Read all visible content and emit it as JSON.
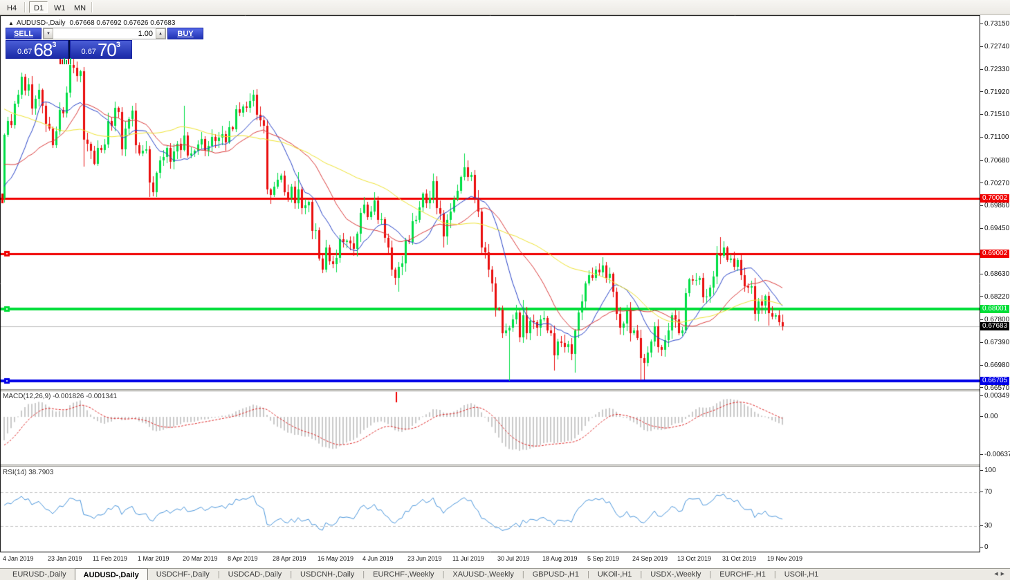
{
  "toolbar": {
    "buttons": [
      "H4",
      "D1",
      "W1",
      "MN"
    ],
    "active_index": 1
  },
  "header": {
    "collapse_icon": "▲",
    "title": "AUDUSD-,Daily",
    "ohlc": "0.67668 0.67692 0.67626 0.67683"
  },
  "trade_widget": {
    "sell_label": "SELL",
    "buy_label": "BUY",
    "volume": "1.00",
    "stepper_down": "▼",
    "stepper_up": "▲",
    "sell_price": {
      "prefix": "0.67",
      "big": "68",
      "sup": "3"
    },
    "buy_price": {
      "prefix": "0.67",
      "big": "70",
      "sup": "3"
    },
    "tick_marks": [
      {
        "color": "#E00000",
        "h": 8
      },
      {
        "color": "#E00000",
        "h": 7
      },
      {
        "color": "#00B050",
        "h": 9
      },
      {
        "color": "#00B050",
        "h": 6
      },
      {
        "color": "#E00000",
        "h": 8
      },
      {
        "color": "#00C060",
        "h": 9
      }
    ]
  },
  "price_axis": {
    "ticks": [
      "0.73150",
      "0.72740",
      "0.72330",
      "0.71920",
      "0.71510",
      "0.71100",
      "0.70680",
      "0.70270",
      "0.69860",
      "0.69450",
      "0.68630",
      "0.68220",
      "0.67800",
      "0.67390",
      "0.66980",
      "0.66570"
    ],
    "highlights": [
      {
        "text": "0.70002",
        "bg": "#F00000",
        "fg": "#FFFFFF"
      },
      {
        "text": "0.69002",
        "bg": "#F00000",
        "fg": "#FFFFFF"
      },
      {
        "text": "0.68001",
        "bg": "#00DE38",
        "fg": "#FFFFFF"
      },
      {
        "text": "0.67683",
        "bg": "#000000",
        "fg": "#FFFFFF"
      },
      {
        "text": "0.66705",
        "bg": "#0000E8",
        "fg": "#FFFFFF"
      }
    ]
  },
  "indicators": {
    "macd": {
      "label": "MACD(12,26,9) -0.001826 -0.001341",
      "fast": 12,
      "slow": 26,
      "signal": 9,
      "axis_labels": [
        "0.00349",
        "0.00",
        "-0.00637"
      ]
    },
    "rsi": {
      "label": "RSI(14) 38.7903",
      "period": 14,
      "axis_labels": [
        "100",
        "70",
        "30",
        "0"
      ],
      "levels": [
        70,
        30
      ]
    }
  },
  "tabs": {
    "items": [
      "EURUSD-,Daily",
      "AUDUSD-,Daily",
      "USDCHF-,Daily",
      "USDCAD-,Daily",
      "USDCNH-,Daily",
      "EURCHF-,Weekly",
      "XAUUSD-,Weekly",
      "GBPUSD-,H1",
      "UKOil-,H1",
      "USDX-,Weekly",
      "EURCHF-,H1",
      "USOil-,H1"
    ],
    "active_index": 1,
    "scroll_left": "◀",
    "scroll_right": "▶"
  },
  "chart_data": {
    "type": "candlestick",
    "symbol": "AUDUSD-",
    "timeframe": "Daily",
    "x_labels": [
      "4 Jan 2019",
      "23 Jan 2019",
      "11 Feb 2019",
      "1 Mar 2019",
      "20 Mar 2019",
      "8 Apr 2019",
      "28 Apr 2019",
      "16 May 2019",
      "4 Jun 2019",
      "23 Jun 2019",
      "11 Jul 2019",
      "30 Jul 2019",
      "18 Aug 2019",
      "5 Sep 2019",
      "24 Sep 2019",
      "13 Oct 2019",
      "31 Oct 2019",
      "19 Nov 2019"
    ],
    "candles_per_label": 13,
    "ylim": {
      "main": [
        0.66564,
        0.73302
      ],
      "macd": [
        -0.00788,
        0.0043
      ],
      "rsi": [
        0,
        100
      ]
    },
    "first_open": 0.7,
    "current_price": 0.67683,
    "closes": [
      0.7115,
      0.714,
      0.7133,
      0.7172,
      0.7188,
      0.722,
      0.7195,
      0.7207,
      0.7163,
      0.718,
      0.7196,
      0.7168,
      0.7135,
      0.7126,
      0.7096,
      0.7121,
      0.716,
      0.7154,
      0.7192,
      0.7242,
      0.7236,
      0.7222,
      0.723,
      0.7106,
      0.7099,
      0.7086,
      0.7063,
      0.7091,
      0.7088,
      0.7098,
      0.714,
      0.7131,
      0.7164,
      0.7157,
      0.7089,
      0.7127,
      0.7144,
      0.7159,
      0.7096,
      0.7081,
      0.7086,
      0.7089,
      0.7029,
      0.7011,
      0.7046,
      0.7069,
      0.7075,
      0.7091,
      0.7066,
      0.7085,
      0.7099,
      0.7088,
      0.7114,
      0.7078,
      0.7081,
      0.7086,
      0.7098,
      0.7108,
      0.7086,
      0.7095,
      0.7111,
      0.7104,
      0.711,
      0.7116,
      0.7102,
      0.7129,
      0.7125,
      0.7161,
      0.7155,
      0.7166,
      0.7164,
      0.7176,
      0.7188,
      0.7152,
      0.7142,
      0.7131,
      0.7016,
      0.7006,
      0.7022,
      0.7034,
      0.7041,
      0.7011,
      0.7001,
      0.7021,
      0.6991,
      0.7016,
      0.6983,
      0.6988,
      0.6994,
      0.6941,
      0.6943,
      0.6891,
      0.6871,
      0.6911,
      0.6886,
      0.6881,
      0.6893,
      0.6927,
      0.6921,
      0.6924,
      0.6919,
      0.6909,
      0.6936,
      0.6974,
      0.6989,
      0.6966,
      0.6976,
      0.6997,
      0.6961,
      0.6963,
      0.6929,
      0.6911,
      0.6871,
      0.6856,
      0.6876,
      0.6883,
      0.6924,
      0.6921,
      0.6959,
      0.6962,
      0.6984,
      0.7009,
      0.6991,
      0.7001,
      0.7031,
      0.6983,
      0.6973,
      0.6931,
      0.6961,
      0.6977,
      0.6999,
      0.7014,
      0.7039,
      0.7057,
      0.7039,
      0.7043,
      0.7001,
      0.6976,
      0.6911,
      0.6903,
      0.6871,
      0.6846,
      0.6801,
      0.6799,
      0.6756,
      0.6761,
      0.6766,
      0.6781,
      0.6794,
      0.6749,
      0.6789,
      0.6756,
      0.6779,
      0.6777,
      0.6766,
      0.6781,
      0.6784,
      0.6761,
      0.6756,
      0.6716,
      0.6741,
      0.6739,
      0.6731,
      0.6736,
      0.6719,
      0.6761,
      0.6794,
      0.6814,
      0.6846,
      0.6861,
      0.6856,
      0.6872,
      0.6866,
      0.6879,
      0.6856,
      0.6864,
      0.6831,
      0.6791,
      0.6766,
      0.6774,
      0.6799,
      0.6756,
      0.6761,
      0.6748,
      0.6712,
      0.6703,
      0.6721,
      0.6742,
      0.6769,
      0.6731,
      0.6726,
      0.6744,
      0.6761,
      0.6789,
      0.6781,
      0.6756,
      0.6761,
      0.6829,
      0.6854,
      0.6851,
      0.6853,
      0.6856,
      0.6821,
      0.6823,
      0.6839,
      0.6859,
      0.6899,
      0.6896,
      0.6911,
      0.6889,
      0.6891,
      0.6876,
      0.6889,
      0.6861,
      0.6841,
      0.6839,
      0.6841,
      0.6791,
      0.6814,
      0.6806,
      0.6824,
      0.6793,
      0.6786,
      0.6789,
      0.6776,
      0.67683
    ],
    "prehistory_closes": [
      0.73,
      0.7285,
      0.727,
      0.726,
      0.7272,
      0.7248,
      0.7232,
      0.7241,
      0.721,
      0.7196,
      0.7176,
      0.7199,
      0.7186,
      0.7205,
      0.7224,
      0.7209,
      0.7193,
      0.7178,
      0.7153,
      0.7134,
      0.7148,
      0.7168,
      0.7143,
      0.7118,
      0.7098,
      0.7078,
      0.7092,
      0.7063,
      0.7048,
      0.7072,
      0.7052,
      0.7038,
      0.7058,
      0.7042,
      0.7023,
      0.7034,
      0.7018,
      0.6998,
      0.7012,
      0.6988,
      0.6936,
      0.7003
    ],
    "wick_overrides": {
      "0": {
        "l": 0.6993
      },
      "5": {
        "h": 0.7228
      },
      "19": {
        "h": 0.7258
      },
      "20": {
        "h": 0.7255
      },
      "23": {
        "l": 0.7058
      },
      "42": {
        "l": 0.7003
      },
      "52": {
        "h": 0.7168
      },
      "72": {
        "h": 0.7196
      },
      "76": {
        "l": 0.7008
      },
      "77": {
        "l": 0.699
      },
      "85": {
        "h": 0.7048
      },
      "92": {
        "l": 0.6865
      },
      "96": {
        "l": 0.6866
      },
      "114": {
        "l": 0.6832
      },
      "124": {
        "h": 0.7045
      },
      "127": {
        "l": 0.6911
      },
      "133": {
        "h": 0.7082
      },
      "144": {
        "l": 0.6748
      },
      "146": {
        "l": 0.66705
      },
      "150": {
        "h": 0.6817
      },
      "159": {
        "l": 0.6689
      },
      "165": {
        "l": 0.6685
      },
      "184": {
        "l": 0.6671
      },
      "185": {
        "l": 0.6673
      },
      "197": {
        "h": 0.6838
      },
      "206": {
        "h": 0.6914
      },
      "207": {
        "h": 0.693
      },
      "221": {
        "l": 0.677
      }
    },
    "moving_averages": [
      {
        "period": 12,
        "color": "#2742C8"
      },
      {
        "period": 24,
        "color": "#DC3C3C"
      },
      {
        "period": 52,
        "color": "#EFE434"
      }
    ],
    "hlines": [
      {
        "price": 0.70002,
        "color": "#F00000",
        "width": 3,
        "handle": "tick"
      },
      {
        "price": 0.69002,
        "color": "#F00000",
        "width": 3,
        "handle": "square"
      },
      {
        "price": 0.68001,
        "color": "#00DE38",
        "width": 4,
        "handle": "square"
      },
      {
        "price": 0.66705,
        "color": "#0000E8",
        "width": 4,
        "handle": "square"
      }
    ],
    "annotations": [
      {
        "type": "vtick",
        "panel": "macd",
        "x": 573,
        "color": "#F00000"
      }
    ],
    "colors": {
      "bull": "#00DE45",
      "bear": "#E90E0E",
      "current_line": "#BFBFBF",
      "macd_hist": "#C9C9C9",
      "macd_signal": "#E02828",
      "rsi_line": "#4A96DC",
      "level_dash": "#C4C4C4"
    }
  }
}
